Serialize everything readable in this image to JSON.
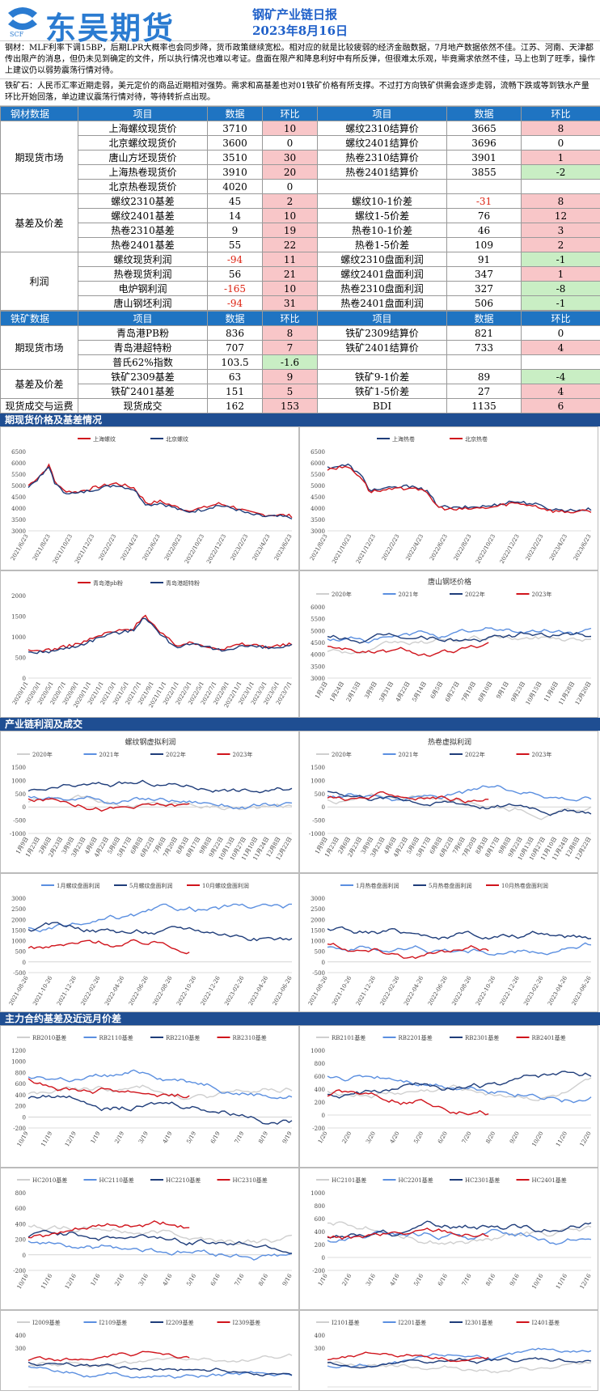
{
  "header": {
    "company": "东吴期货",
    "logo_sub": "SCF",
    "report_title": "钢矿产业链日报",
    "report_date": "2023年8月16日"
  },
  "notes": {
    "steel": "钢材：MLF利率下调15BP，后期LPR大概率也会同步降，货币政策继续宽松。相对应的就是比较疲弱的经济金融数据，7月地产数据依然不佳。江苏、河南、天津都传出限产的消息，但仍未见到确定的文件，所以执行情况也难以考证。盘面在限产和降息利好中有所反弹，但很难太乐观，毕竟需求依然不佳，马上也到了旺季，操作上建议仍以弱势震荡行情对待。",
    "ore": "铁矿石：人民币汇率近期走弱，美元定价的商品近期相对强势。需求和高基差也对01铁矿价格有所支撑。不过打方向铁矿供需会逐步走弱，流畅下跌或等到铁水产量环比开始回落，单边建议震荡行情对待，等待转折点出现。"
  },
  "steel_table": {
    "header": [
      "钢材数据",
      "项目",
      "数据",
      "环比",
      "项目",
      "数据",
      "环比"
    ],
    "groups": [
      {
        "name": "期现货市场",
        "rows": [
          {
            "l_item": "上海螺纹现货价",
            "l_val": "3710",
            "l_chg": "10",
            "l_cls": "pos",
            "r_item": "螺纹2310结算价",
            "r_val": "3665",
            "r_chg": "8",
            "r_cls": "pos"
          },
          {
            "l_item": "北京螺纹现货价",
            "l_val": "3600",
            "l_chg": "0",
            "l_cls": "",
            "r_item": "螺纹2401结算价",
            "r_val": "3696",
            "r_chg": "0",
            "r_cls": ""
          },
          {
            "l_item": "唐山方坯现货价",
            "l_val": "3510",
            "l_chg": "30",
            "l_cls": "pos",
            "r_item": "热卷2310结算价",
            "r_val": "3901",
            "r_chg": "1",
            "r_cls": "pos"
          },
          {
            "l_item": "上海热卷现货价",
            "l_val": "3910",
            "l_chg": "20",
            "l_cls": "pos",
            "r_item": "热卷2401结算价",
            "r_val": "3855",
            "r_chg": "-2",
            "r_cls": "neg"
          },
          {
            "l_item": "北京热卷现货价",
            "l_val": "4020",
            "l_chg": "0",
            "l_cls": "",
            "r_item": "",
            "r_val": "",
            "r_chg": "",
            "r_cls": ""
          }
        ]
      },
      {
        "name": "基差及价差",
        "rows": [
          {
            "l_item": "螺纹2310基差",
            "l_val": "45",
            "l_chg": "2",
            "l_cls": "pos",
            "r_item": "螺纹10-1价差",
            "r_val": "-31",
            "r_chg": "8",
            "r_cls": "pos",
            "r_red": true
          },
          {
            "l_item": "螺纹2401基差",
            "l_val": "14",
            "l_chg": "10",
            "l_cls": "pos",
            "r_item": "螺纹1-5价差",
            "r_val": "76",
            "r_chg": "12",
            "r_cls": "pos"
          },
          {
            "l_item": "热卷2310基差",
            "l_val": "9",
            "l_chg": "19",
            "l_cls": "pos",
            "r_item": "热卷10-1价差",
            "r_val": "46",
            "r_chg": "3",
            "r_cls": "pos"
          },
          {
            "l_item": "热卷2401基差",
            "l_val": "55",
            "l_chg": "22",
            "l_cls": "pos",
            "r_item": "热卷1-5价差",
            "r_val": "109",
            "r_chg": "2",
            "r_cls": "pos"
          }
        ]
      },
      {
        "name": "利润",
        "rows": [
          {
            "l_item": "螺纹现货利润",
            "l_val": "-94",
            "l_chg": "11",
            "l_cls": "pos",
            "l_red": true,
            "r_item": "螺纹2310盘面利润",
            "r_val": "91",
            "r_chg": "-1",
            "r_cls": "neg"
          },
          {
            "l_item": "热卷现货利润",
            "l_val": "56",
            "l_chg": "21",
            "l_cls": "pos",
            "r_item": "螺纹2401盘面利润",
            "r_val": "347",
            "r_chg": "1",
            "r_cls": "pos"
          },
          {
            "l_item": "电炉钢利润",
            "l_val": "-165",
            "l_chg": "10",
            "l_cls": "pos",
            "l_red": true,
            "r_item": "热卷2310盘面利润",
            "r_val": "327",
            "r_chg": "-8",
            "r_cls": "neg"
          },
          {
            "l_item": "唐山钢坯利润",
            "l_val": "-94",
            "l_chg": "31",
            "l_cls": "pos",
            "l_red": true,
            "r_item": "热卷2401盘面利润",
            "r_val": "506",
            "r_chg": "-1",
            "r_cls": "neg"
          }
        ]
      }
    ]
  },
  "ore_table": {
    "header": [
      "铁矿数据",
      "项目",
      "数据",
      "环比",
      "项目",
      "数据",
      "环比"
    ],
    "groups": [
      {
        "name": "期现货市场",
        "rows": [
          {
            "l_item": "青岛港PB粉",
            "l_val": "836",
            "l_chg": "8",
            "l_cls": "pos",
            "r_item": "铁矿2309结算价",
            "r_val": "821",
            "r_chg": "0",
            "r_cls": ""
          },
          {
            "l_item": "青岛港超特粉",
            "l_val": "707",
            "l_chg": "7",
            "l_cls": "pos",
            "r_item": "铁矿2401结算价",
            "r_val": "733",
            "r_chg": "4",
            "r_cls": "pos"
          },
          {
            "l_item": "普氏62%指数",
            "l_val": "103.5",
            "l_chg": "-1.6",
            "l_cls": "neg",
            "r_item": "",
            "r_val": "",
            "r_chg": "",
            "r_cls": ""
          }
        ]
      },
      {
        "name": "基差及价差",
        "rows": [
          {
            "l_item": "铁矿2309基差",
            "l_val": "63",
            "l_chg": "9",
            "l_cls": "pos",
            "r_item": "铁矿9-1价差",
            "r_val": "89",
            "r_chg": "-4",
            "r_cls": "neg"
          },
          {
            "l_item": "铁矿2401基差",
            "l_val": "151",
            "l_chg": "5",
            "l_cls": "pos",
            "r_item": "铁矿1-5价差",
            "r_val": "27",
            "r_chg": "4",
            "r_cls": "pos"
          }
        ]
      },
      {
        "name": "现货成交与运费",
        "rows": [
          {
            "l_item": "现货成交",
            "l_val": "162",
            "l_chg": "153",
            "l_cls": "pos",
            "r_item": "BDI",
            "r_val": "1135",
            "r_chg": "6",
            "r_cls": "pos"
          }
        ]
      }
    ]
  },
  "sections": [
    "期现货价格及基差情况",
    "产业链利润及成交",
    "主力合约基差及近远月价差"
  ],
  "colors": {
    "red": "#d0141c",
    "navy": "#1f3d7a",
    "blue": "#5b8fe0",
    "lightblue": "#8db4ee",
    "gray": "#cfcfcf"
  },
  "chart_data": [
    {
      "type": "line",
      "title": "",
      "series": [
        {
          "name": "上海螺纹",
          "color": "red"
        },
        {
          "name": "北京螺纹",
          "color": "navy"
        }
      ],
      "ylim": [
        3000,
        6500
      ],
      "yticks": [
        3000,
        3500,
        4000,
        4500,
        5000,
        5500,
        6000,
        6500
      ],
      "xticks": [
        "2021/6/23",
        "2021/8/23",
        "2021/10/23",
        "2021/12/23",
        "2022/2/23",
        "2022/4/23",
        "2022/6/23",
        "2022/8/23",
        "2022/10/23",
        "2022/12/23",
        "2023/2/23",
        "2023/4/23",
        "2023/6/23"
      ],
      "shape": [
        [
          0,
          5000
        ],
        [
          0.05,
          5500
        ],
        [
          0.08,
          5900
        ],
        [
          0.1,
          5200
        ],
        [
          0.13,
          4800
        ],
        [
          0.18,
          4700
        ],
        [
          0.25,
          4900
        ],
        [
          0.33,
          5100
        ],
        [
          0.4,
          4900
        ],
        [
          0.45,
          4200
        ],
        [
          0.5,
          4300
        ],
        [
          0.55,
          4100
        ],
        [
          0.6,
          3900
        ],
        [
          0.66,
          4000
        ],
        [
          0.72,
          4200
        ],
        [
          0.78,
          4050
        ],
        [
          0.84,
          3800
        ],
        [
          0.9,
          3700
        ],
        [
          0.96,
          3700
        ],
        [
          1,
          3650
        ]
      ]
    },
    {
      "type": "line",
      "title": "",
      "series": [
        {
          "name": "上海热卷",
          "color": "navy"
        },
        {
          "name": "北京热卷",
          "color": "red"
        }
      ],
      "ylim": [
        3000,
        6500
      ],
      "yticks": [
        3000,
        3500,
        4000,
        4500,
        5000,
        5500,
        6000,
        6500
      ],
      "xticks": [
        "2021/8/23",
        "2021/10/23",
        "2021/12/23",
        "2022/2/23",
        "2022/4/23",
        "2022/6/23",
        "2022/8/23",
        "2022/10/23",
        "2022/12/23",
        "2023/2/23",
        "2023/4/23",
        "2023/6/23"
      ],
      "shape": [
        [
          0,
          5800
        ],
        [
          0.08,
          5900
        ],
        [
          0.13,
          5400
        ],
        [
          0.16,
          4800
        ],
        [
          0.25,
          4900
        ],
        [
          0.33,
          5000
        ],
        [
          0.38,
          4700
        ],
        [
          0.42,
          4100
        ],
        [
          0.48,
          4000
        ],
        [
          0.55,
          4050
        ],
        [
          0.62,
          4100
        ],
        [
          0.7,
          4300
        ],
        [
          0.78,
          4200
        ],
        [
          0.85,
          3950
        ],
        [
          0.92,
          3900
        ],
        [
          1,
          3950
        ]
      ]
    },
    {
      "type": "line",
      "title": "",
      "series": [
        {
          "name": "青岛港pb粉",
          "color": "red"
        },
        {
          "name": "青岛港超特粉",
          "color": "navy"
        }
      ],
      "ylim": [
        0,
        2000
      ],
      "yticks": [
        0,
        500,
        1000,
        1500,
        2000
      ],
      "xticks": [
        "2020/1/1",
        "2020/3/1",
        "2020/5/1",
        "2020/7/1",
        "2020/9/1",
        "2020/11/1",
        "2021/1/1",
        "2021/3/1",
        "2021/5/1",
        "2021/7/1",
        "2021/9/1",
        "2021/11/1",
        "2022/1/1",
        "2022/3/1",
        "2022/5/1",
        "2022/7/1",
        "2022/9/1",
        "2022/11/1",
        "2023/1/1",
        "2023/3/1",
        "2023/5/1",
        "2023/7/1"
      ],
      "shape": [
        [
          0,
          650
        ],
        [
          0.1,
          700
        ],
        [
          0.2,
          850
        ],
        [
          0.3,
          1100
        ],
        [
          0.4,
          1200
        ],
        [
          0.44,
          1550
        ],
        [
          0.5,
          1100
        ],
        [
          0.56,
          800
        ],
        [
          0.62,
          850
        ],
        [
          0.68,
          780
        ],
        [
          0.74,
          700
        ],
        [
          0.8,
          820
        ],
        [
          0.86,
          800
        ],
        [
          0.92,
          760
        ],
        [
          1,
          820
        ]
      ]
    },
    {
      "type": "line",
      "title": "唐山钢坯价格",
      "series": [
        {
          "name": "2020年",
          "color": "gray"
        },
        {
          "name": "2021年",
          "color": "blue"
        },
        {
          "name": "2022年",
          "color": "navy"
        },
        {
          "name": "2023年",
          "color": "red"
        }
      ],
      "ylim": [
        3000,
        6000
      ],
      "yticks": [
        3000,
        3500,
        4000,
        4500,
        5000,
        5500,
        6000
      ],
      "xticks": [
        "1月2日",
        "1月24日",
        "2月15日",
        "3月9日",
        "3月31日",
        "4月22日",
        "5月14日",
        "6月5日",
        "6月27日",
        "7月19日",
        "8月10日",
        "9月1日",
        "9月23日",
        "10月15日",
        "11月6日",
        "11月28日",
        "12月20日"
      ]
    },
    {
      "type": "line",
      "title": "螺纹钢虚拟利润",
      "series": [
        {
          "name": "2020年",
          "color": "gray"
        },
        {
          "name": "2021年",
          "color": "blue"
        },
        {
          "name": "2022年",
          "color": "navy"
        },
        {
          "name": "2023年",
          "color": "red"
        }
      ],
      "ylim": [
        -1000,
        1500
      ],
      "yticks": [
        -1000,
        -500,
        0,
        500,
        1000,
        1500
      ],
      "xticks": [
        "1月9日",
        "1月23日",
        "2月6日",
        "2月23日",
        "3月9日",
        "3月23日",
        "4月6日",
        "4月22日",
        "5月6日",
        "5月17日",
        "6月8日",
        "6月22日",
        "7月6日",
        "7月20日",
        "8月3日",
        "8月17日",
        "9月8日",
        "9月22日",
        "10月13日",
        "10月27日",
        "11月10日",
        "11月24日",
        "12月8日",
        "12月22日"
      ]
    },
    {
      "type": "line",
      "title": "热卷虚拟利润",
      "series": [
        {
          "name": "2020年",
          "color": "gray"
        },
        {
          "name": "2021年",
          "color": "blue"
        },
        {
          "name": "2022年",
          "color": "navy"
        },
        {
          "name": "2023年",
          "color": "red"
        }
      ],
      "ylim": [
        -1000,
        1500
      ],
      "yticks": [
        -1000,
        -500,
        0,
        500,
        1000,
        1500
      ],
      "xticks": [
        "1月9日",
        "1月23日",
        "2月6日",
        "2月23日",
        "3月9日",
        "3月23日",
        "4月6日",
        "4月22日",
        "5月6日",
        "5月17日",
        "6月8日",
        "6月22日",
        "7月6日",
        "7月20日",
        "8月3日",
        "8月17日",
        "9月8日",
        "9月22日",
        "10月13日",
        "10月27日",
        "11月10日",
        "11月24日",
        "12月8日",
        "12月22日"
      ]
    },
    {
      "type": "line",
      "title": "",
      "series": [
        {
          "name": "1月螺纹盘面利润",
          "color": "blue"
        },
        {
          "name": "5月螺纹盘面利润",
          "color": "navy"
        },
        {
          "name": "10月螺纹盘面利润",
          "color": "red"
        }
      ],
      "ylim": [
        -500,
        3000
      ],
      "yticks": [
        -500,
        0,
        500,
        1000,
        1500,
        2000,
        2500,
        3000
      ],
      "xticks": [
        "2021-08-26",
        "2021-10-26",
        "2021-12-26",
        "2022-02-26",
        "2022-04-26",
        "2022-06-26",
        "2022-08-26",
        "2022-10-26",
        "2022-12-26",
        "2023-02-26",
        "2023-04-26",
        "2023-06-26"
      ]
    },
    {
      "type": "line",
      "title": "",
      "series": [
        {
          "name": "1月热卷盘面利润",
          "color": "blue"
        },
        {
          "name": "5月热卷盘面利润",
          "color": "navy"
        },
        {
          "name": "10月热卷盘面利润",
          "color": "red"
        }
      ],
      "ylim": [
        -500,
        3000
      ],
      "yticks": [
        -500,
        0,
        500,
        1000,
        1500,
        2000,
        2500,
        3000
      ],
      "xticks": [
        "2021-08-26",
        "2021-10-26",
        "2021-12-26",
        "2022-02-26",
        "2022-04-26",
        "2022-06-26",
        "2022-08-26",
        "2022-10-26",
        "2022-12-26",
        "2023-02-26",
        "2023-04-26",
        "2023-06-26"
      ]
    },
    {
      "type": "line",
      "title": "",
      "series": [
        {
          "name": "RB2010基差",
          "color": "gray"
        },
        {
          "name": "RB2110基差",
          "color": "blue"
        },
        {
          "name": "RB2210基差",
          "color": "navy"
        },
        {
          "name": "RB2310基差",
          "color": "red"
        }
      ],
      "ylim": [
        -200,
        1200
      ],
      "yticks": [
        -200,
        0,
        200,
        400,
        600,
        800,
        1000,
        1200
      ],
      "xticks": [
        "10/19",
        "11/19",
        "12/19",
        "1/19",
        "2/19",
        "3/19",
        "4/19",
        "5/19",
        "6/19",
        "7/19",
        "8/19",
        "9/19"
      ]
    },
    {
      "type": "line",
      "title": "",
      "series": [
        {
          "name": "RB2101基差",
          "color": "gray"
        },
        {
          "name": "RB2201基差",
          "color": "blue"
        },
        {
          "name": "RB2301基差",
          "color": "navy"
        },
        {
          "name": "RB2401基差",
          "color": "red"
        }
      ],
      "ylim": [
        -200,
        1000
      ],
      "yticks": [
        -200,
        0,
        200,
        400,
        600,
        800,
        1000
      ],
      "xticks": [
        "1/20",
        "2/20",
        "3/20",
        "4/20",
        "5/20",
        "6/20",
        "7/20",
        "8/20",
        "9/20",
        "10/20",
        "11/20",
        "12/20"
      ]
    },
    {
      "type": "line",
      "title": "",
      "series": [
        {
          "name": "HC2010基差",
          "color": "gray"
        },
        {
          "name": "HC2110基差",
          "color": "blue"
        },
        {
          "name": "HC2210基差",
          "color": "navy"
        },
        {
          "name": "HC2310基差",
          "color": "red"
        }
      ],
      "ylim": [
        -200,
        800
      ],
      "yticks": [
        -200,
        0,
        200,
        400,
        600,
        800
      ],
      "xticks": [
        "10/16",
        "11/16",
        "12/16",
        "1/16",
        "2/16",
        "3/16",
        "4/16",
        "5/16",
        "6/16",
        "7/16",
        "8/16",
        "9/16"
      ]
    },
    {
      "type": "line",
      "title": "",
      "series": [
        {
          "name": "HC2101基差",
          "color": "gray"
        },
        {
          "name": "HC2201基差",
          "color": "blue"
        },
        {
          "name": "HC2301基差",
          "color": "navy"
        },
        {
          "name": "HC2401基差",
          "color": "red"
        }
      ],
      "ylim": [
        -200,
        1000
      ],
      "yticks": [
        -200,
        0,
        200,
        400,
        600,
        800,
        1000
      ],
      "xticks": [
        "1/16",
        "2/16",
        "3/16",
        "4/16",
        "5/16",
        "6/16",
        "7/16",
        "8/16",
        "9/16",
        "10/16",
        "11/16",
        "12/16"
      ]
    },
    {
      "type": "line",
      "title": "",
      "series": [
        {
          "name": "I2009基差",
          "color": "gray"
        },
        {
          "name": "I2109基差",
          "color": "blue"
        },
        {
          "name": "I2209基差",
          "color": "navy"
        },
        {
          "name": "I2309基差",
          "color": "red"
        }
      ],
      "ylim": [
        0,
        400
      ],
      "yticks": [
        300,
        400
      ],
      "xticks": []
    },
    {
      "type": "line",
      "title": "",
      "series": [
        {
          "name": "I2101基差",
          "color": "gray"
        },
        {
          "name": "I2201基差",
          "color": "blue"
        },
        {
          "name": "I2301基差",
          "color": "navy"
        },
        {
          "name": "I2401基差",
          "color": "red"
        }
      ],
      "ylim": [
        0,
        400
      ],
      "yticks": [
        300,
        400
      ],
      "xticks": []
    }
  ]
}
